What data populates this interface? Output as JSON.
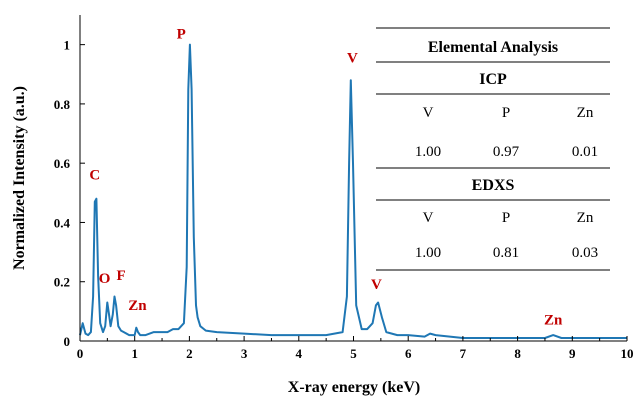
{
  "chart_data": {
    "type": "line",
    "xlabel": "X-ray energy (keV)",
    "ylabel": "Normalized Intensity (a.u.)",
    "xlim": [
      0,
      10
    ],
    "ylim": [
      0,
      1.1
    ],
    "x_ticks": [
      "0",
      "1",
      "2",
      "3",
      "4",
      "5",
      "6",
      "7",
      "8",
      "9",
      "10"
    ],
    "y_ticks": [
      "0",
      "0.2",
      "0.4",
      "0.6",
      "0.8",
      "1"
    ],
    "grid": false,
    "line_color": "#1f77b4",
    "label_color": "#c00000",
    "series": [
      {
        "x": [
          0,
          0.05,
          0.1,
          0.15,
          0.2,
          0.24,
          0.27,
          0.3,
          0.33,
          0.37,
          0.42,
          0.46,
          0.5,
          0.53,
          0.56,
          0.6,
          0.63,
          0.66,
          0.7,
          0.75,
          0.8,
          0.9,
          1.0,
          1.03,
          1.06,
          1.1,
          1.2,
          1.35,
          1.5,
          1.6,
          1.7,
          1.8,
          1.9,
          1.95,
          1.98,
          2.01,
          2.04,
          2.08,
          2.12,
          2.15,
          2.2,
          2.3,
          2.5,
          3.0,
          3.5,
          4.0,
          4.5,
          4.8,
          4.88,
          4.92,
          4.95,
          4.99,
          5.05,
          5.15,
          5.25,
          5.35,
          5.41,
          5.45,
          5.52,
          5.6,
          5.8,
          6.0,
          6.3,
          6.4,
          6.5,
          7.0,
          7.5,
          8.0,
          8.5,
          8.65,
          8.8,
          9.0,
          9.5,
          10.0
        ],
        "y": [
          0.02,
          0.06,
          0.025,
          0.02,
          0.03,
          0.15,
          0.47,
          0.48,
          0.22,
          0.06,
          0.03,
          0.05,
          0.13,
          0.09,
          0.05,
          0.09,
          0.15,
          0.12,
          0.05,
          0.035,
          0.03,
          0.02,
          0.02,
          0.045,
          0.03,
          0.02,
          0.02,
          0.03,
          0.03,
          0.03,
          0.04,
          0.04,
          0.06,
          0.25,
          0.85,
          1.0,
          0.85,
          0.35,
          0.12,
          0.08,
          0.05,
          0.035,
          0.03,
          0.025,
          0.02,
          0.02,
          0.02,
          0.03,
          0.15,
          0.6,
          0.88,
          0.6,
          0.12,
          0.04,
          0.04,
          0.06,
          0.12,
          0.13,
          0.08,
          0.03,
          0.02,
          0.02,
          0.015,
          0.025,
          0.02,
          0.01,
          0.01,
          0.01,
          0.01,
          0.02,
          0.01,
          0.01,
          0.01,
          0.01
        ]
      }
    ],
    "annotations": [
      {
        "text": "C",
        "x": 0.27,
        "y": 0.545
      },
      {
        "text": "O",
        "x": 0.45,
        "y": 0.195
      },
      {
        "text": "F",
        "x": 0.75,
        "y": 0.205
      },
      {
        "text": "Zn",
        "x": 1.05,
        "y": 0.105
      },
      {
        "text": "P",
        "x": 1.85,
        "y": 1.02
      },
      {
        "text": "V",
        "x": 4.98,
        "y": 0.94
      },
      {
        "text": "V",
        "x": 5.42,
        "y": 0.175
      },
      {
        "text": "Zn",
        "x": 8.65,
        "y": 0.055
      }
    ],
    "table": {
      "title": "Elemental Analysis",
      "sections": [
        {
          "name": "ICP",
          "headers": [
            "V",
            "P",
            "Zn"
          ],
          "values": [
            "1.00",
            "0.97",
            "0.01"
          ]
        },
        {
          "name": "EDXS",
          "headers": [
            "V",
            "P",
            "Zn"
          ],
          "values": [
            "1.00",
            "0.81",
            "0.03"
          ]
        }
      ]
    }
  }
}
